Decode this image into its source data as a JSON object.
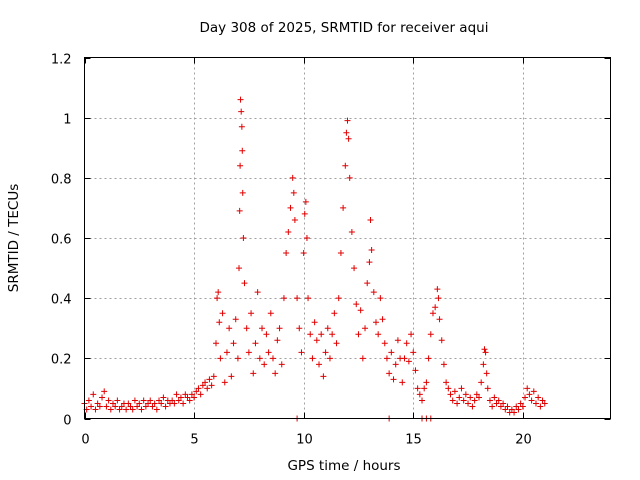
{
  "chart_data": {
    "type": "scatter",
    "title": "Day 308 of 2025, SRMTID for receiver aqui",
    "xlabel": "GPS time / hours",
    "ylabel": "SRMTID / TECUs",
    "xlim": [
      0,
      24
    ],
    "ylim": [
      0,
      1.2
    ],
    "grid": true,
    "x_ticks": [
      0,
      5,
      10,
      15,
      20
    ],
    "x_tick_labels": [
      "0",
      "5",
      "10",
      "15",
      "20"
    ],
    "y_ticks": [
      0,
      0.2,
      0.4,
      0.6,
      0.8,
      1.0,
      1.2
    ],
    "y_tick_labels": [
      "0",
      "0.2",
      "0.4",
      "0.6",
      "0.8",
      "1",
      "1.2"
    ],
    "marker": "+",
    "marker_color": "#e00000",
    "series": [
      {
        "name": "SRMTID",
        "points": [
          [
            0.0,
            0.05
          ],
          [
            0.1,
            0.03
          ],
          [
            0.2,
            0.06
          ],
          [
            0.3,
            0.04
          ],
          [
            0.4,
            0.08
          ],
          [
            0.5,
            0.03
          ],
          [
            0.6,
            0.05
          ],
          [
            0.7,
            0.04
          ],
          [
            0.8,
            0.07
          ],
          [
            0.9,
            0.09
          ],
          [
            1.0,
            0.04
          ],
          [
            1.1,
            0.06
          ],
          [
            1.2,
            0.03
          ],
          [
            1.3,
            0.05
          ],
          [
            1.4,
            0.04
          ],
          [
            1.5,
            0.06
          ],
          [
            1.6,
            0.03
          ],
          [
            1.7,
            0.04
          ],
          [
            1.8,
            0.05
          ],
          [
            1.9,
            0.03
          ],
          [
            2.0,
            0.05
          ],
          [
            2.1,
            0.04
          ],
          [
            2.2,
            0.03
          ],
          [
            2.3,
            0.06
          ],
          [
            2.4,
            0.04
          ],
          [
            2.5,
            0.05
          ],
          [
            2.6,
            0.03
          ],
          [
            2.7,
            0.06
          ],
          [
            2.8,
            0.04
          ],
          [
            2.9,
            0.05
          ],
          [
            3.0,
            0.06
          ],
          [
            3.1,
            0.04
          ],
          [
            3.2,
            0.05
          ],
          [
            3.3,
            0.03
          ],
          [
            3.4,
            0.06
          ],
          [
            3.5,
            0.05
          ],
          [
            3.6,
            0.07
          ],
          [
            3.7,
            0.04
          ],
          [
            3.8,
            0.06
          ],
          [
            3.9,
            0.05
          ],
          [
            4.0,
            0.06
          ],
          [
            4.1,
            0.05
          ],
          [
            4.2,
            0.08
          ],
          [
            4.3,
            0.06
          ],
          [
            4.4,
            0.07
          ],
          [
            4.5,
            0.05
          ],
          [
            4.6,
            0.08
          ],
          [
            4.7,
            0.07
          ],
          [
            4.8,
            0.06
          ],
          [
            4.9,
            0.08
          ],
          [
            5.0,
            0.07
          ],
          [
            5.1,
            0.09
          ],
          [
            5.2,
            0.1
          ],
          [
            5.3,
            0.08
          ],
          [
            5.4,
            0.11
          ],
          [
            5.5,
            0.12
          ],
          [
            5.6,
            0.1
          ],
          [
            5.7,
            0.13
          ],
          [
            5.8,
            0.11
          ],
          [
            5.9,
            0.14
          ],
          [
            6.0,
            0.25
          ],
          [
            6.05,
            0.4
          ],
          [
            6.1,
            0.42
          ],
          [
            6.15,
            0.32
          ],
          [
            6.2,
            0.2
          ],
          [
            6.3,
            0.35
          ],
          [
            6.4,
            0.12
          ],
          [
            6.5,
            0.22
          ],
          [
            6.6,
            0.3
          ],
          [
            6.7,
            0.14
          ],
          [
            6.8,
            0.25
          ],
          [
            6.9,
            0.33
          ],
          [
            7.0,
            0.2
          ],
          [
            7.05,
            0.5
          ],
          [
            7.08,
            0.69
          ],
          [
            7.1,
            0.84
          ],
          [
            7.12,
            1.06
          ],
          [
            7.15,
            1.02
          ],
          [
            7.18,
            0.97
          ],
          [
            7.2,
            0.89
          ],
          [
            7.22,
            0.75
          ],
          [
            7.25,
            0.6
          ],
          [
            7.3,
            0.45
          ],
          [
            7.4,
            0.3
          ],
          [
            7.5,
            0.22
          ],
          [
            7.6,
            0.35
          ],
          [
            7.7,
            0.15
          ],
          [
            7.8,
            0.25
          ],
          [
            7.9,
            0.42
          ],
          [
            8.0,
            0.2
          ],
          [
            8.1,
            0.3
          ],
          [
            8.2,
            0.18
          ],
          [
            8.3,
            0.28
          ],
          [
            8.4,
            0.22
          ],
          [
            8.5,
            0.35
          ],
          [
            8.6,
            0.2
          ],
          [
            8.7,
            0.15
          ],
          [
            8.8,
            0.26
          ],
          [
            8.9,
            0.3
          ],
          [
            9.0,
            0.18
          ],
          [
            9.1,
            0.4
          ],
          [
            9.2,
            0.55
          ],
          [
            9.3,
            0.62
          ],
          [
            9.4,
            0.7
          ],
          [
            9.5,
            0.8
          ],
          [
            9.55,
            0.75
          ],
          [
            9.6,
            0.66
          ],
          [
            9.7,
            0.4
          ],
          [
            9.8,
            0.3
          ],
          [
            9.9,
            0.22
          ],
          [
            10.0,
            0.55
          ],
          [
            10.05,
            0.68
          ],
          [
            10.1,
            0.72
          ],
          [
            10.15,
            0.6
          ],
          [
            10.2,
            0.4
          ],
          [
            10.3,
            0.28
          ],
          [
            10.4,
            0.2
          ],
          [
            10.5,
            0.32
          ],
          [
            10.6,
            0.26
          ],
          [
            10.7,
            0.18
          ],
          [
            10.8,
            0.28
          ],
          [
            10.9,
            0.14
          ],
          [
            11.0,
            0.22
          ],
          [
            11.1,
            0.3
          ],
          [
            11.2,
            0.2
          ],
          [
            11.3,
            0.28
          ],
          [
            11.4,
            0.35
          ],
          [
            11.5,
            0.25
          ],
          [
            11.6,
            0.4
          ],
          [
            11.7,
            0.55
          ],
          [
            11.8,
            0.7
          ],
          [
            11.9,
            0.84
          ],
          [
            11.95,
            0.95
          ],
          [
            12.0,
            0.99
          ],
          [
            12.05,
            0.93
          ],
          [
            12.1,
            0.8
          ],
          [
            12.2,
            0.62
          ],
          [
            12.3,
            0.5
          ],
          [
            12.4,
            0.38
          ],
          [
            12.5,
            0.28
          ],
          [
            12.6,
            0.36
          ],
          [
            12.7,
            0.2
          ],
          [
            12.8,
            0.3
          ],
          [
            12.9,
            0.45
          ],
          [
            13.0,
            0.52
          ],
          [
            13.05,
            0.66
          ],
          [
            13.1,
            0.56
          ],
          [
            13.2,
            0.42
          ],
          [
            13.3,
            0.32
          ],
          [
            13.4,
            0.28
          ],
          [
            13.5,
            0.4
          ],
          [
            13.6,
            0.33
          ],
          [
            13.7,
            0.25
          ],
          [
            13.8,
            0.2
          ],
          [
            13.9,
            0.15
          ],
          [
            14.0,
            0.22
          ],
          [
            14.1,
            0.13
          ],
          [
            14.2,
            0.18
          ],
          [
            14.3,
            0.26
          ],
          [
            14.4,
            0.2
          ],
          [
            14.5,
            0.12
          ],
          [
            14.6,
            0.2
          ],
          [
            14.7,
            0.25
          ],
          [
            14.8,
            0.19
          ],
          [
            14.9,
            0.28
          ],
          [
            15.0,
            0.22
          ],
          [
            15.1,
            0.16
          ],
          [
            15.2,
            0.1
          ],
          [
            15.3,
            0.08
          ],
          [
            15.4,
            0.06
          ],
          [
            15.5,
            0.1
          ],
          [
            15.6,
            0.12
          ],
          [
            15.7,
            0.2
          ],
          [
            15.8,
            0.28
          ],
          [
            15.9,
            0.35
          ],
          [
            16.0,
            0.37
          ],
          [
            16.1,
            0.43
          ],
          [
            16.15,
            0.4
          ],
          [
            16.2,
            0.33
          ],
          [
            16.3,
            0.26
          ],
          [
            16.4,
            0.18
          ],
          [
            16.5,
            0.12
          ],
          [
            16.6,
            0.1
          ],
          [
            16.7,
            0.08
          ],
          [
            16.8,
            0.06
          ],
          [
            16.9,
            0.09
          ],
          [
            17.0,
            0.05
          ],
          [
            17.1,
            0.07
          ],
          [
            17.2,
            0.1
          ],
          [
            17.3,
            0.06
          ],
          [
            17.4,
            0.08
          ],
          [
            17.5,
            0.05
          ],
          [
            17.6,
            0.07
          ],
          [
            17.7,
            0.04
          ],
          [
            17.8,
            0.06
          ],
          [
            17.9,
            0.08
          ],
          [
            18.0,
            0.07
          ],
          [
            18.1,
            0.12
          ],
          [
            18.2,
            0.18
          ],
          [
            18.25,
            0.23
          ],
          [
            18.3,
            0.22
          ],
          [
            18.35,
            0.15
          ],
          [
            18.4,
            0.1
          ],
          [
            18.5,
            0.06
          ],
          [
            18.6,
            0.04
          ],
          [
            18.7,
            0.07
          ],
          [
            18.8,
            0.05
          ],
          [
            18.9,
            0.06
          ],
          [
            19.0,
            0.04
          ],
          [
            19.1,
            0.05
          ],
          [
            19.2,
            0.03
          ],
          [
            19.3,
            0.04
          ],
          [
            19.4,
            0.02
          ],
          [
            19.5,
            0.03
          ],
          [
            19.6,
            0.02
          ],
          [
            19.7,
            0.04
          ],
          [
            19.8,
            0.03
          ],
          [
            19.9,
            0.05
          ],
          [
            20.0,
            0.04
          ],
          [
            20.1,
            0.07
          ],
          [
            20.2,
            0.1
          ],
          [
            20.3,
            0.08
          ],
          [
            20.4,
            0.06
          ],
          [
            20.5,
            0.09
          ],
          [
            20.6,
            0.05
          ],
          [
            20.7,
            0.07
          ],
          [
            20.8,
            0.04
          ],
          [
            20.9,
            0.06
          ],
          [
            21.0,
            0.05
          ],
          [
            9.7,
            0.0
          ],
          [
            13.9,
            0.0
          ],
          [
            15.4,
            0.0
          ],
          [
            15.6,
            0.0
          ],
          [
            15.8,
            0.0
          ]
        ]
      }
    ]
  }
}
